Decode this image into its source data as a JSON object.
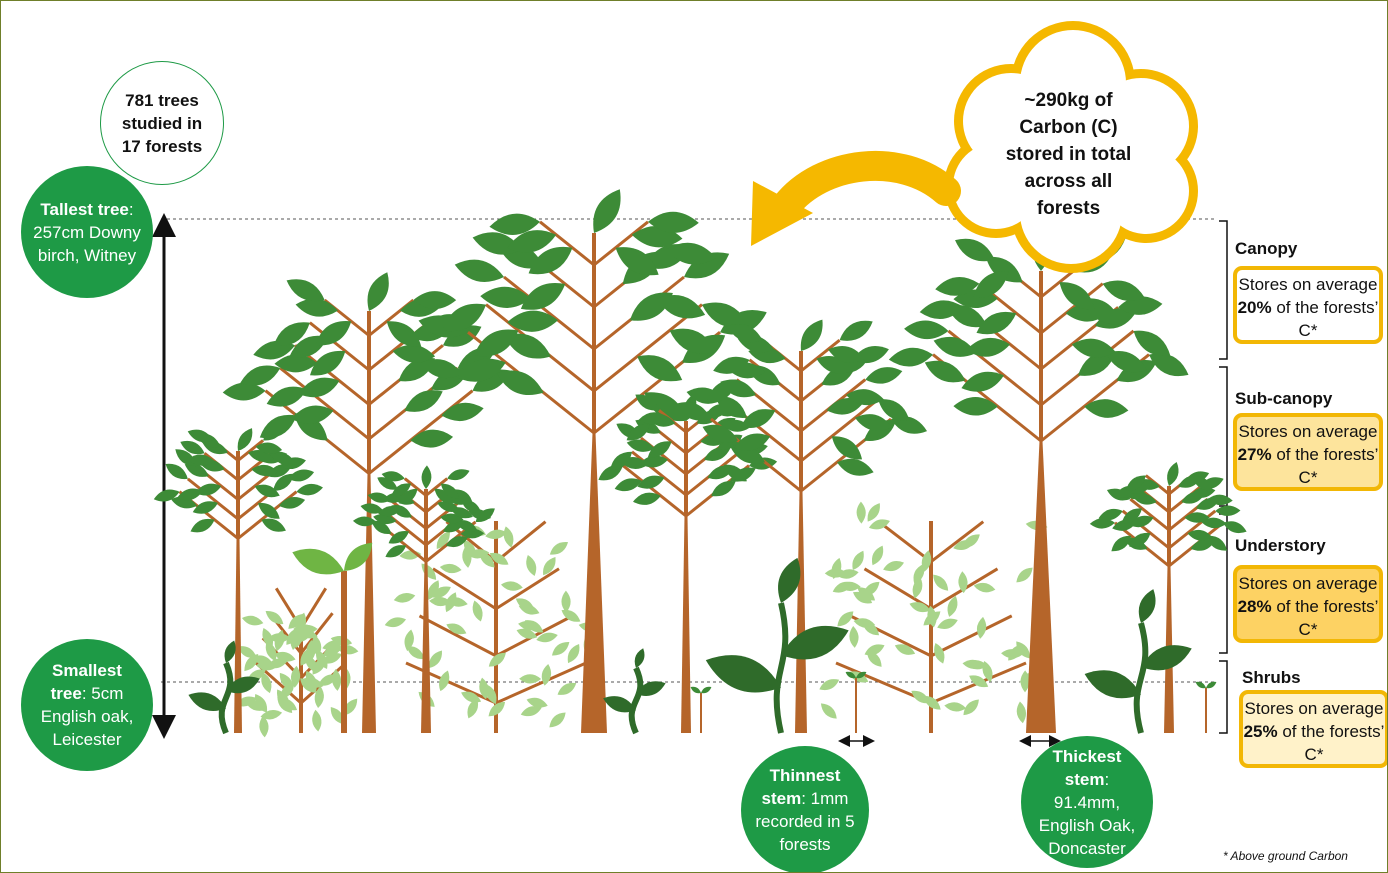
{
  "summary": "781 trees studied in 17 forests",
  "tallest": {
    "label": "Tallest tree",
    "text": ": 257cm Downy birch, Witney"
  },
  "smallest": {
    "label": "Smallest tree",
    "text": ": 5cm English oak, Leicester"
  },
  "carbon_total": "~290kg of Carbon (C) stored in total across all forests",
  "layers": [
    {
      "name": "Canopy",
      "prefix": "Stores on average",
      "share": "20%",
      "suffix": "of the forests’ C*"
    },
    {
      "name": "Sub-canopy",
      "prefix": "Stores on average",
      "share": "27%",
      "suffix": "of the forests’ C*"
    },
    {
      "name": "Understory",
      "prefix": "Stores on average",
      "share": "28%",
      "suffix": "of the forests’ C*"
    },
    {
      "name": "Shrubs",
      "prefix": "Stores on average",
      "share": "25%",
      "suffix": "of the forests’ C*"
    }
  ],
  "thinnest": {
    "label": "Thinnest stem",
    "text": ": 1mm recorded in 5 forests"
  },
  "thickest": {
    "label": "Thickest stem",
    "text": ": 91.4mm, English Oak, Doncaster"
  },
  "footnote": "* Above ground Carbon"
}
